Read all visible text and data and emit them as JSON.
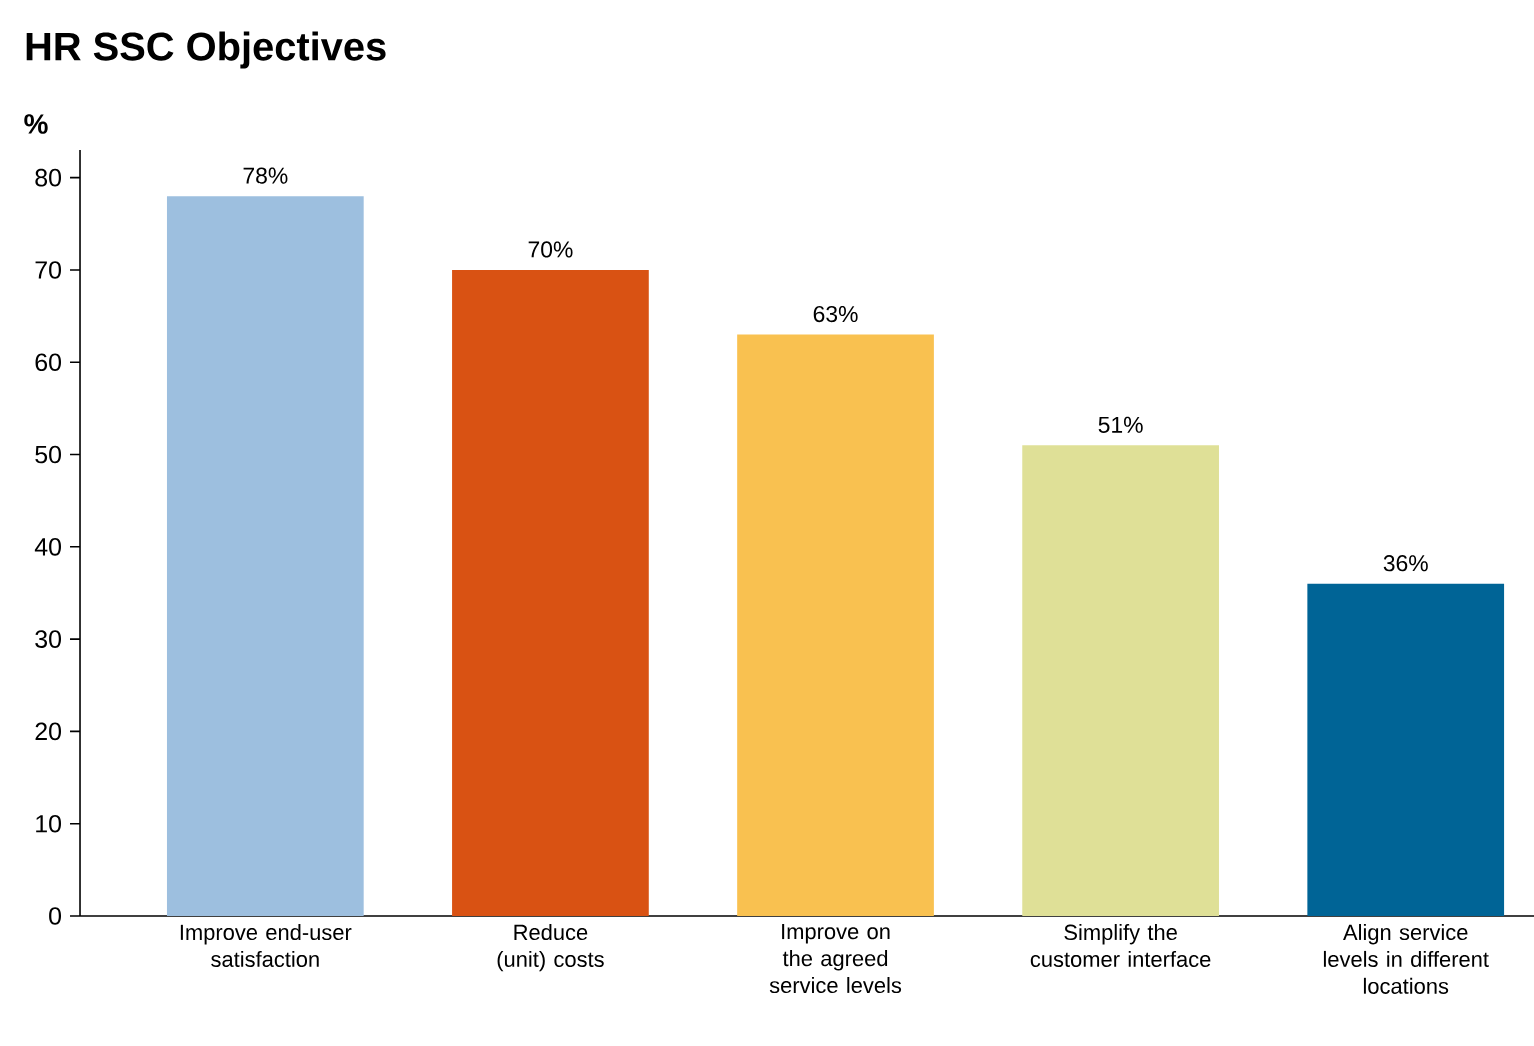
{
  "chart_data": {
    "type": "bar",
    "title": "HR SSC Objectives",
    "ylabel": "%",
    "categories": [
      "Improve end-user satisfaction",
      "Reduce (unit) costs",
      "Improve on the agreed service levels",
      "Simplify the customer interface",
      "Align service levels in different locations"
    ],
    "values": [
      78,
      70,
      63,
      51,
      36
    ],
    "colors": [
      "#9dbfdf",
      "#d95213",
      "#f9c150",
      "#dfe097",
      "#006496"
    ],
    "value_labels": [
      "78%",
      "70%",
      "63%",
      "51%",
      "36%"
    ],
    "ylim": [
      0,
      83
    ],
    "yticks": [
      0,
      10,
      20,
      30,
      40,
      50,
      60,
      70,
      80
    ],
    "grid": false
  }
}
